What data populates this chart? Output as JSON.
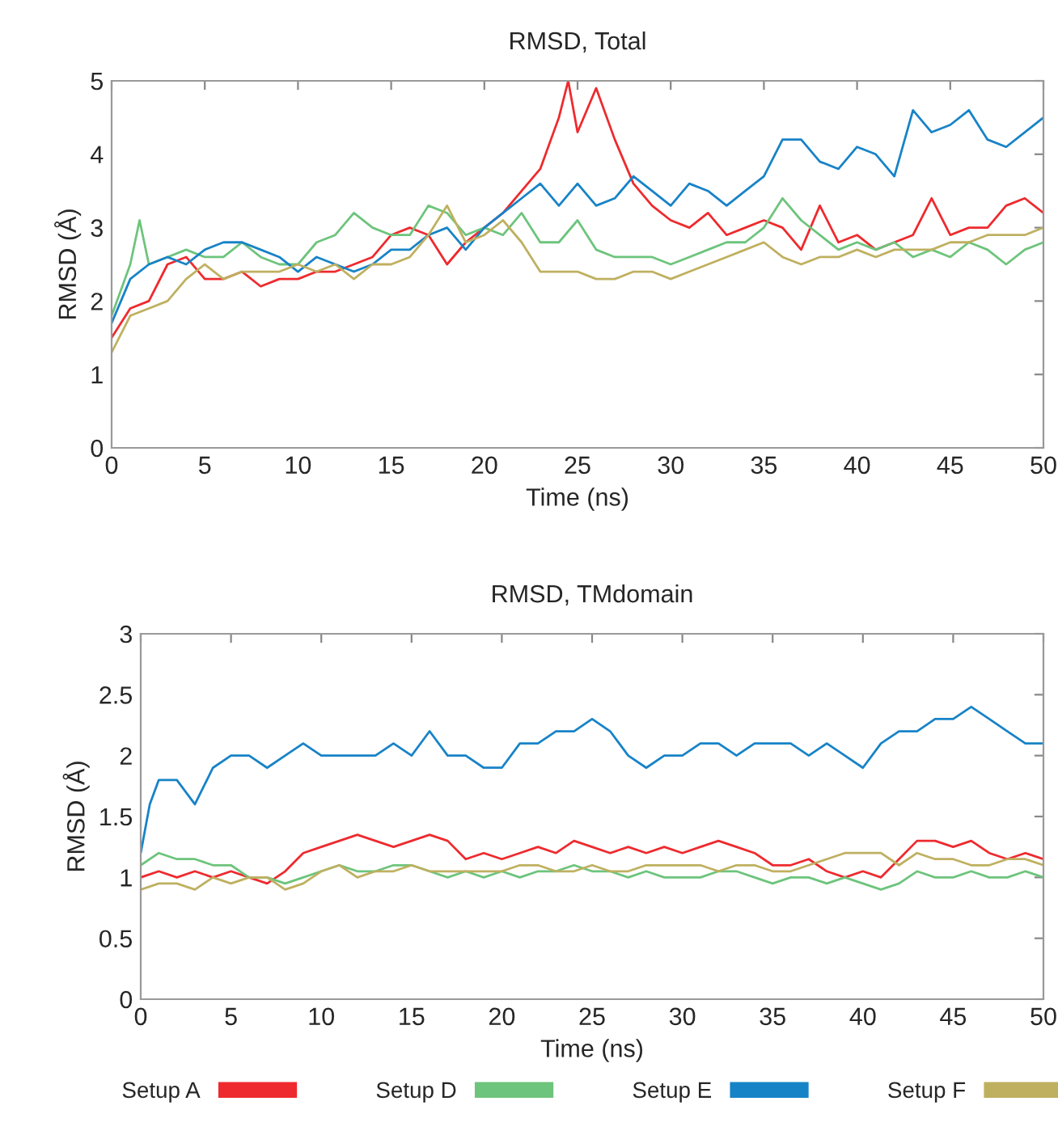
{
  "chart_data": [
    {
      "type": "line",
      "title": "RMSD, Total",
      "xlabel": "Time (ns)",
      "ylabel": "RMSD (Å)",
      "xlim": [
        0,
        50
      ],
      "xticks": [
        0,
        5,
        10,
        15,
        20,
        25,
        30,
        35,
        40,
        45,
        50
      ],
      "ylim": [
        0,
        5
      ],
      "yticks": [
        0,
        1,
        2,
        3,
        4,
        5
      ],
      "grid": false,
      "legend": false,
      "series": [
        {
          "color": "#ee2a2e",
          "x": [
            0,
            1,
            2,
            3,
            4,
            5,
            6,
            7,
            8,
            9,
            10,
            11,
            12,
            13,
            14,
            15,
            16,
            17,
            18,
            19,
            20,
            21,
            22,
            23,
            24,
            24.5,
            25,
            26,
            27,
            28,
            29,
            30,
            31,
            32,
            33,
            34,
            35,
            36,
            37,
            38,
            39,
            40,
            41,
            42,
            43,
            44,
            45,
            46,
            47,
            48,
            49,
            50
          ],
          "values": [
            1.5,
            1.9,
            2.0,
            2.5,
            2.6,
            2.3,
            2.3,
            2.4,
            2.2,
            2.3,
            2.3,
            2.4,
            2.4,
            2.5,
            2.6,
            2.9,
            3.0,
            2.9,
            2.5,
            2.8,
            3.0,
            3.2,
            3.5,
            3.8,
            4.5,
            5.0,
            4.3,
            4.9,
            4.2,
            3.6,
            3.3,
            3.1,
            3.0,
            3.2,
            2.9,
            3.0,
            3.1,
            3.0,
            2.7,
            3.3,
            2.8,
            2.9,
            2.7,
            2.8,
            2.9,
            3.4,
            2.9,
            3.0,
            3.0,
            3.3,
            3.4,
            3.2
          ]
        },
        {
          "color": "#6dc47c",
          "x": [
            0,
            1,
            1.5,
            2,
            3,
            4,
            5,
            6,
            7,
            8,
            9,
            10,
            11,
            12,
            13,
            14,
            15,
            16,
            17,
            18,
            19,
            20,
            21,
            22,
            23,
            24,
            25,
            26,
            27,
            28,
            29,
            30,
            31,
            32,
            33,
            34,
            35,
            36,
            37,
            38,
            39,
            40,
            41,
            42,
            43,
            44,
            45,
            46,
            47,
            48,
            49,
            50
          ],
          "values": [
            1.8,
            2.5,
            3.1,
            2.5,
            2.6,
            2.7,
            2.6,
            2.6,
            2.8,
            2.6,
            2.5,
            2.5,
            2.8,
            2.9,
            3.2,
            3.0,
            2.9,
            2.9,
            3.3,
            3.2,
            2.9,
            3.0,
            2.9,
            3.2,
            2.8,
            2.8,
            3.1,
            2.7,
            2.6,
            2.6,
            2.6,
            2.5,
            2.6,
            2.7,
            2.8,
            2.8,
            3.0,
            3.4,
            3.1,
            2.9,
            2.7,
            2.8,
            2.7,
            2.8,
            2.6,
            2.7,
            2.6,
            2.8,
            2.7,
            2.5,
            2.7,
            2.8
          ]
        },
        {
          "color": "#1783c7",
          "x": [
            0,
            1,
            2,
            3,
            4,
            5,
            6,
            7,
            8,
            9,
            10,
            11,
            12,
            13,
            14,
            15,
            16,
            17,
            18,
            19,
            20,
            21,
            22,
            23,
            24,
            25,
            26,
            27,
            28,
            29,
            30,
            31,
            32,
            33,
            34,
            35,
            36,
            37,
            38,
            39,
            40,
            41,
            42,
            43,
            44,
            45,
            46,
            47,
            48,
            49,
            50
          ],
          "values": [
            1.7,
            2.3,
            2.5,
            2.6,
            2.5,
            2.7,
            2.8,
            2.8,
            2.7,
            2.6,
            2.4,
            2.6,
            2.5,
            2.4,
            2.5,
            2.7,
            2.7,
            2.9,
            3.0,
            2.7,
            3.0,
            3.2,
            3.4,
            3.6,
            3.3,
            3.6,
            3.3,
            3.4,
            3.7,
            3.5,
            3.3,
            3.6,
            3.5,
            3.3,
            3.5,
            3.7,
            4.2,
            4.2,
            3.9,
            3.8,
            4.1,
            4.0,
            3.7,
            4.6,
            4.3,
            4.4,
            4.6,
            4.2,
            4.1,
            4.3,
            4.5
          ]
        },
        {
          "color": "#bfb060",
          "x": [
            0,
            1,
            2,
            3,
            4,
            5,
            6,
            7,
            8,
            9,
            10,
            11,
            12,
            13,
            14,
            15,
            16,
            17,
            18,
            19,
            20,
            21,
            22,
            23,
            24,
            25,
            26,
            27,
            28,
            29,
            30,
            31,
            32,
            33,
            34,
            35,
            36,
            37,
            38,
            39,
            40,
            41,
            42,
            43,
            44,
            45,
            46,
            47,
            48,
            49,
            50
          ],
          "values": [
            1.3,
            1.8,
            1.9,
            2.0,
            2.3,
            2.5,
            2.3,
            2.4,
            2.4,
            2.4,
            2.5,
            2.4,
            2.5,
            2.3,
            2.5,
            2.5,
            2.6,
            2.9,
            3.3,
            2.8,
            2.9,
            3.1,
            2.8,
            2.4,
            2.4,
            2.4,
            2.3,
            2.3,
            2.4,
            2.4,
            2.3,
            2.4,
            2.5,
            2.6,
            2.7,
            2.8,
            2.6,
            2.5,
            2.6,
            2.6,
            2.7,
            2.6,
            2.7,
            2.7,
            2.7,
            2.8,
            2.8,
            2.9,
            2.9,
            2.9,
            3.0
          ]
        }
      ]
    },
    {
      "type": "line",
      "title": "RMSD, TMdomain",
      "xlabel": "Time (ns)",
      "ylabel": "RMSD (Å)",
      "xlim": [
        0,
        50
      ],
      "xticks": [
        0,
        5,
        10,
        15,
        20,
        25,
        30,
        35,
        40,
        45,
        50
      ],
      "ylim": [
        0,
        3
      ],
      "yticks": [
        0,
        0.5,
        1,
        1.5,
        2,
        2.5,
        3
      ],
      "grid": false,
      "legend": "bottom",
      "series": [
        {
          "name": "Setup A",
          "color": "#ee2a2e",
          "x": [
            0,
            1,
            2,
            3,
            4,
            5,
            6,
            7,
            8,
            9,
            10,
            11,
            12,
            13,
            14,
            15,
            16,
            17,
            18,
            19,
            20,
            21,
            22,
            23,
            24,
            25,
            26,
            27,
            28,
            29,
            30,
            31,
            32,
            33,
            34,
            35,
            36,
            37,
            38,
            39,
            40,
            41,
            42,
            43,
            44,
            45,
            46,
            47,
            48,
            49,
            50
          ],
          "values": [
            1.0,
            1.05,
            1.0,
            1.05,
            1.0,
            1.05,
            1.0,
            0.95,
            1.05,
            1.2,
            1.25,
            1.3,
            1.35,
            1.3,
            1.25,
            1.3,
            1.35,
            1.3,
            1.15,
            1.2,
            1.15,
            1.2,
            1.25,
            1.2,
            1.3,
            1.25,
            1.2,
            1.25,
            1.2,
            1.25,
            1.2,
            1.25,
            1.3,
            1.25,
            1.2,
            1.1,
            1.1,
            1.15,
            1.05,
            1.0,
            1.05,
            1.0,
            1.15,
            1.3,
            1.3,
            1.25,
            1.3,
            1.2,
            1.15,
            1.2,
            1.15
          ]
        },
        {
          "name": "Setup D",
          "color": "#6dc47c",
          "x": [
            0,
            1,
            2,
            3,
            4,
            5,
            6,
            7,
            8,
            9,
            10,
            11,
            12,
            13,
            14,
            15,
            16,
            17,
            18,
            19,
            20,
            21,
            22,
            23,
            24,
            25,
            26,
            27,
            28,
            29,
            30,
            31,
            32,
            33,
            34,
            35,
            36,
            37,
            38,
            39,
            40,
            41,
            42,
            43,
            44,
            45,
            46,
            47,
            48,
            49,
            50
          ],
          "values": [
            1.1,
            1.2,
            1.15,
            1.15,
            1.1,
            1.1,
            1.0,
            1.0,
            0.95,
            1.0,
            1.05,
            1.1,
            1.05,
            1.05,
            1.1,
            1.1,
            1.05,
            1.0,
            1.05,
            1.0,
            1.05,
            1.0,
            1.05,
            1.05,
            1.1,
            1.05,
            1.05,
            1.0,
            1.05,
            1.0,
            1.0,
            1.0,
            1.05,
            1.05,
            1.0,
            0.95,
            1.0,
            1.0,
            0.95,
            1.0,
            0.95,
            0.9,
            0.95,
            1.05,
            1.0,
            1.0,
            1.05,
            1.0,
            1.0,
            1.05,
            1.0
          ]
        },
        {
          "name": "Setup E",
          "color": "#1783c7",
          "x": [
            0,
            0.5,
            1,
            2,
            3,
            4,
            5,
            6,
            7,
            8,
            9,
            10,
            11,
            12,
            13,
            14,
            15,
            16,
            17,
            18,
            19,
            20,
            21,
            22,
            23,
            24,
            25,
            26,
            27,
            28,
            29,
            30,
            31,
            32,
            33,
            34,
            35,
            36,
            37,
            38,
            39,
            40,
            41,
            42,
            43,
            44,
            45,
            46,
            47,
            48,
            49,
            50
          ],
          "values": [
            1.2,
            1.6,
            1.8,
            1.8,
            1.6,
            1.9,
            2.0,
            2.0,
            1.9,
            2.0,
            2.1,
            2.0,
            2.0,
            2.0,
            2.0,
            2.1,
            2.0,
            2.2,
            2.0,
            2.0,
            1.9,
            1.9,
            2.1,
            2.1,
            2.2,
            2.2,
            2.3,
            2.2,
            2.0,
            1.9,
            2.0,
            2.0,
            2.1,
            2.1,
            2.0,
            2.1,
            2.1,
            2.1,
            2.0,
            2.1,
            2.0,
            1.9,
            2.1,
            2.2,
            2.2,
            2.3,
            2.3,
            2.4,
            2.3,
            2.2,
            2.1,
            2.1
          ]
        },
        {
          "name": "Setup F",
          "color": "#bfb060",
          "x": [
            0,
            1,
            2,
            3,
            4,
            5,
            6,
            7,
            8,
            9,
            10,
            11,
            12,
            13,
            14,
            15,
            16,
            17,
            18,
            19,
            20,
            21,
            22,
            23,
            24,
            25,
            26,
            27,
            28,
            29,
            30,
            31,
            32,
            33,
            34,
            35,
            36,
            37,
            38,
            39,
            40,
            41,
            42,
            43,
            44,
            45,
            46,
            47,
            48,
            49,
            50
          ],
          "values": [
            0.9,
            0.95,
            0.95,
            0.9,
            1.0,
            0.95,
            1.0,
            1.0,
            0.9,
            0.95,
            1.05,
            1.1,
            1.0,
            1.05,
            1.05,
            1.1,
            1.05,
            1.05,
            1.05,
            1.05,
            1.05,
            1.1,
            1.1,
            1.05,
            1.05,
            1.1,
            1.05,
            1.05,
            1.1,
            1.1,
            1.1,
            1.1,
            1.05,
            1.1,
            1.1,
            1.05,
            1.05,
            1.1,
            1.15,
            1.2,
            1.2,
            1.2,
            1.1,
            1.2,
            1.15,
            1.15,
            1.1,
            1.1,
            1.15,
            1.15,
            1.1
          ]
        }
      ]
    }
  ]
}
